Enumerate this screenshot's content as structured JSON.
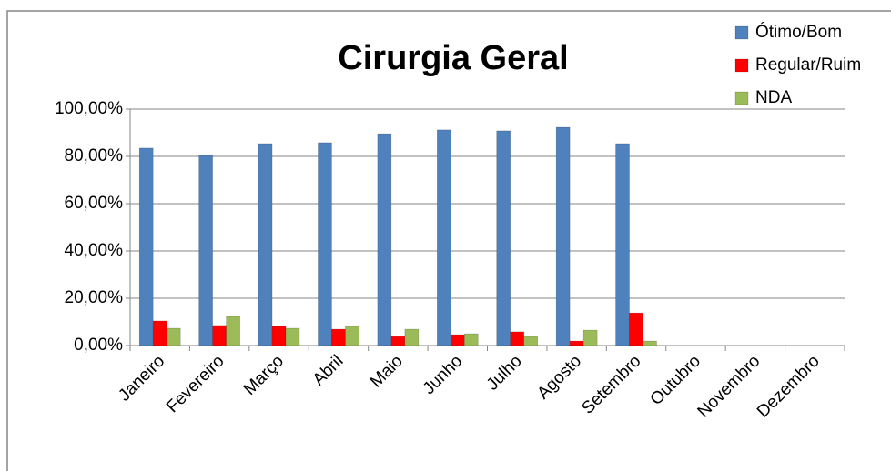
{
  "chart_data": {
    "type": "bar",
    "title": "Cirurgia Geral",
    "categories": [
      "Janeiro",
      "Fevereiro",
      "Março",
      "Abril",
      "Maio",
      "Junho",
      "Julho",
      "Agosto",
      "Setembro",
      "Outubro",
      "Novembro",
      "Dezembro"
    ],
    "series": [
      {
        "name": "Ótimo/Bom",
        "color": "#4f81bd",
        "values": [
          83.5,
          80.4,
          85.4,
          85.8,
          89.6,
          91.2,
          90.8,
          92.3,
          85.4,
          null,
          null,
          null
        ]
      },
      {
        "name": "Regular/Ruim",
        "color": "#ff0000",
        "values": [
          10.4,
          8.5,
          8.1,
          6.9,
          3.8,
          4.6,
          5.8,
          1.9,
          13.8,
          null,
          null,
          null
        ]
      },
      {
        "name": "NDA",
        "color": "#9bbb59",
        "values": [
          7.3,
          12.3,
          7.3,
          8.1,
          6.9,
          5.0,
          3.8,
          6.5,
          1.9,
          null,
          null,
          null
        ]
      }
    ],
    "ylim": [
      0,
      100
    ],
    "yticks": [
      {
        "value": 0,
        "label": "0,00%"
      },
      {
        "value": 20,
        "label": "20,00%"
      },
      {
        "value": 40,
        "label": "40,00%"
      },
      {
        "value": 60,
        "label": "60,00%"
      },
      {
        "value": 80,
        "label": "80,00%"
      },
      {
        "value": 100,
        "label": "100,00%"
      }
    ],
    "grid": true,
    "legend": "top-right"
  }
}
